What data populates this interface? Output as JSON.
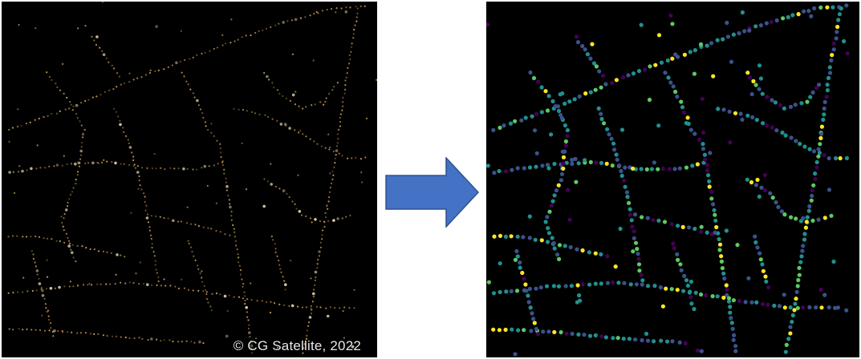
{
  "left_image": {
    "credit": "© CG Satellite, 2022"
  },
  "arrow": {
    "icon": "right-arrow-icon",
    "color": "#4472c4",
    "border_color": "#2f528f"
  },
  "colors": {
    "light_warm": "#e8b25a",
    "light_bright": "#fff3c8",
    "viridis": [
      "#440154",
      "#3b528b",
      "#21908d",
      "#5dc963",
      "#fde725"
    ]
  }
}
